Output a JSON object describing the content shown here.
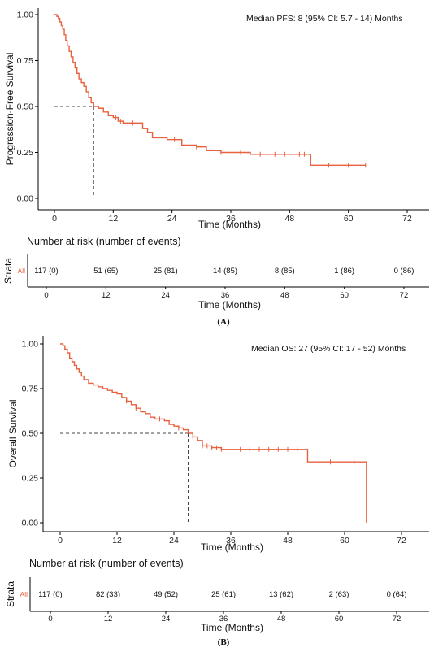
{
  "colors": {
    "curve": "#e8603c",
    "axis": "#000000",
    "median": "#444444"
  },
  "chart_data": [
    {
      "type": "line",
      "panel_label": "(A)",
      "annotation": "Median PFS: 8 (95% CI: 5.7 - 14) Months",
      "xlabel": "Time (Months)",
      "ylabel": "Progression-Free Survival",
      "xlim": [
        0,
        72
      ],
      "ylim": [
        0,
        1
      ],
      "x_ticks": [
        0,
        12,
        24,
        36,
        48,
        60,
        72
      ],
      "x_tick_labels": [
        "0",
        "12",
        "24",
        "36",
        "48",
        "60",
        "72"
      ],
      "y_ticks": [
        0,
        0.25,
        0.5,
        0.75,
        1
      ],
      "y_tick_labels": [
        "0.00",
        "0.25",
        "0.50",
        "0.75",
        "1.00"
      ],
      "median": {
        "x": 8,
        "y": 0.5
      },
      "steps": [
        [
          0,
          1.0
        ],
        [
          0.5,
          0.99
        ],
        [
          0.8,
          0.98
        ],
        [
          1.1,
          0.96
        ],
        [
          1.4,
          0.94
        ],
        [
          1.7,
          0.92
        ],
        [
          2.0,
          0.89
        ],
        [
          2.3,
          0.86
        ],
        [
          2.6,
          0.83
        ],
        [
          3.0,
          0.8
        ],
        [
          3.4,
          0.77
        ],
        [
          3.8,
          0.74
        ],
        [
          4.2,
          0.71
        ],
        [
          4.6,
          0.68
        ],
        [
          5.0,
          0.65
        ],
        [
          5.5,
          0.63
        ],
        [
          6.0,
          0.61
        ],
        [
          6.5,
          0.58
        ],
        [
          7.0,
          0.55
        ],
        [
          7.5,
          0.52
        ],
        [
          8.0,
          0.5
        ],
        [
          9.0,
          0.49
        ],
        [
          10.0,
          0.47
        ],
        [
          11.0,
          0.45
        ],
        [
          12.0,
          0.44
        ],
        [
          13.0,
          0.42
        ],
        [
          14.0,
          0.41
        ],
        [
          17.0,
          0.41
        ],
        [
          18.0,
          0.38
        ],
        [
          19.0,
          0.36
        ],
        [
          20.0,
          0.33
        ],
        [
          23.0,
          0.32
        ],
        [
          26.0,
          0.29
        ],
        [
          29.0,
          0.28
        ],
        [
          31.0,
          0.26
        ],
        [
          34.0,
          0.25
        ],
        [
          40.0,
          0.24
        ],
        [
          52.0,
          0.24
        ],
        [
          52.3,
          0.18
        ],
        [
          63.5,
          0.18
        ]
      ],
      "censored": [
        12.5,
        13.5,
        15,
        16,
        24.5,
        29,
        34,
        38,
        42,
        45,
        47,
        50,
        51,
        56,
        60,
        63.5
      ],
      "risk_table": {
        "title": "Number at risk (number of events)",
        "strata_title": "Strata",
        "strata_label": "All",
        "xlabel": "Time (Months)",
        "times": [
          0,
          12,
          24,
          36,
          48,
          60,
          72
        ],
        "time_labels": [
          "0",
          "12",
          "24",
          "36",
          "48",
          "60",
          "72"
        ],
        "values": [
          "117 (0)",
          "51 (65)",
          "25 (81)",
          "14 (85)",
          "8 (85)",
          "1 (86)",
          "0 (86)"
        ]
      }
    },
    {
      "type": "line",
      "panel_label": "(B)",
      "annotation": "Median OS: 27 (95% CI: 17 - 52) Months",
      "xlabel": "Time (Months)",
      "ylabel": "Overall Survival",
      "xlim": [
        0,
        72
      ],
      "ylim": [
        0,
        1
      ],
      "x_ticks": [
        0,
        12,
        24,
        36,
        48,
        60,
        72
      ],
      "x_tick_labels": [
        "0",
        "12",
        "24",
        "36",
        "48",
        "60",
        "72"
      ],
      "y_ticks": [
        0,
        0.25,
        0.5,
        0.75,
        1
      ],
      "y_tick_labels": [
        "0.00",
        "0.25",
        "0.50",
        "0.75",
        "1.00"
      ],
      "median": {
        "x": 27,
        "y": 0.5
      },
      "steps": [
        [
          0,
          1.0
        ],
        [
          0.6,
          0.99
        ],
        [
          1.0,
          0.97
        ],
        [
          1.5,
          0.95
        ],
        [
          2.0,
          0.92
        ],
        [
          2.5,
          0.9
        ],
        [
          3.0,
          0.88
        ],
        [
          3.5,
          0.86
        ],
        [
          4.0,
          0.84
        ],
        [
          4.5,
          0.82
        ],
        [
          5.0,
          0.8
        ],
        [
          6.0,
          0.78
        ],
        [
          7.0,
          0.77
        ],
        [
          8.0,
          0.76
        ],
        [
          9.0,
          0.75
        ],
        [
          10.0,
          0.74
        ],
        [
          11.0,
          0.73
        ],
        [
          12.0,
          0.72
        ],
        [
          13.0,
          0.7
        ],
        [
          14.0,
          0.68
        ],
        [
          15.0,
          0.66
        ],
        [
          16.0,
          0.64
        ],
        [
          17.0,
          0.62
        ],
        [
          18.0,
          0.61
        ],
        [
          19.0,
          0.59
        ],
        [
          20.0,
          0.58
        ],
        [
          22.0,
          0.57
        ],
        [
          23.0,
          0.55
        ],
        [
          24.0,
          0.54
        ],
        [
          25.0,
          0.53
        ],
        [
          26.0,
          0.52
        ],
        [
          27.0,
          0.5
        ],
        [
          28.0,
          0.48
        ],
        [
          29.0,
          0.46
        ],
        [
          30.0,
          0.43
        ],
        [
          32.0,
          0.42
        ],
        [
          34.0,
          0.41
        ],
        [
          52.0,
          0.41
        ],
        [
          52.2,
          0.34
        ],
        [
          64.5,
          0.34
        ],
        [
          64.6,
          0.0
        ]
      ],
      "censored": [
        8,
        14,
        16,
        21,
        25,
        28,
        30,
        31,
        32,
        33,
        34,
        38,
        40,
        42,
        44,
        46,
        48,
        50,
        51,
        57,
        62
      ],
      "risk_table": {
        "title": "Number at risk (number of events)",
        "strata_title": "Strata",
        "strata_label": "All",
        "xlabel": "Time (Months)",
        "times": [
          0,
          12,
          24,
          36,
          48,
          60,
          72
        ],
        "time_labels": [
          "0",
          "12",
          "24",
          "36",
          "48",
          "60",
          "72"
        ],
        "values": [
          "117 (0)",
          "82 (33)",
          "49 (52)",
          "25 (61)",
          "13 (62)",
          "2 (63)",
          "0 (64)"
        ]
      }
    }
  ]
}
